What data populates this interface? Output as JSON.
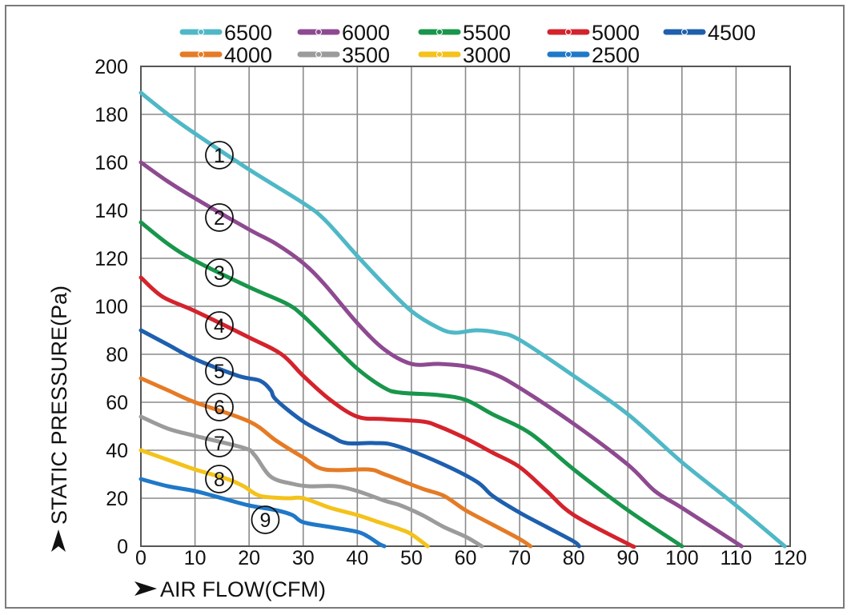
{
  "chart_data": {
    "type": "line",
    "title": "",
    "xlabel": "AIR FLOW(CFM)",
    "ylabel": "STATIC PRESSURE(Pa)",
    "xlim": [
      0,
      120
    ],
    "ylim": [
      0,
      200
    ],
    "x_ticks": [
      "0",
      "10",
      "20",
      "30",
      "40",
      "50",
      "60",
      "70",
      "80",
      "90",
      "100",
      "110",
      "120"
    ],
    "y_ticks": [
      "0",
      "20",
      "40",
      "60",
      "80",
      "100",
      "120",
      "140",
      "160",
      "180",
      "200"
    ],
    "grid": true,
    "legend_position": "top",
    "series": [
      {
        "name": "6500",
        "marker": "①",
        "color": "#4fb8c6",
        "label_x": 14.5,
        "label_y": 163,
        "points": [
          [
            0,
            189
          ],
          [
            5,
            180
          ],
          [
            10,
            172
          ],
          [
            20,
            157
          ],
          [
            30,
            143
          ],
          [
            34,
            136
          ],
          [
            40,
            121
          ],
          [
            45,
            109
          ],
          [
            50,
            98
          ],
          [
            55,
            91
          ],
          [
            58,
            89
          ],
          [
            62,
            90
          ],
          [
            66,
            89
          ],
          [
            70,
            86
          ],
          [
            80,
            71
          ],
          [
            90,
            55
          ],
          [
            100,
            35
          ],
          [
            110,
            17
          ],
          [
            119,
            0
          ]
        ]
      },
      {
        "name": "6000",
        "marker": "②",
        "color": "#8e4a91",
        "label_x": 14.5,
        "label_y": 137,
        "points": [
          [
            0,
            160
          ],
          [
            5,
            152
          ],
          [
            10,
            145
          ],
          [
            20,
            132
          ],
          [
            25,
            126
          ],
          [
            30,
            118
          ],
          [
            34,
            109
          ],
          [
            40,
            93
          ],
          [
            45,
            82
          ],
          [
            50,
            76
          ],
          [
            55,
            76
          ],
          [
            60,
            75
          ],
          [
            65,
            72
          ],
          [
            70,
            66
          ],
          [
            80,
            51
          ],
          [
            90,
            34
          ],
          [
            95,
            23
          ],
          [
            100,
            16
          ],
          [
            111,
            0
          ]
        ]
      },
      {
        "name": "5500",
        "marker": "③",
        "color": "#18964b",
        "label_x": 14.5,
        "label_y": 114,
        "points": [
          [
            0,
            135
          ],
          [
            5,
            126
          ],
          [
            10,
            119
          ],
          [
            20,
            108
          ],
          [
            27,
            101
          ],
          [
            30,
            96
          ],
          [
            35,
            85
          ],
          [
            40,
            74
          ],
          [
            45,
            66
          ],
          [
            48,
            64
          ],
          [
            55,
            63
          ],
          [
            60,
            61
          ],
          [
            65,
            55
          ],
          [
            72,
            47
          ],
          [
            80,
            32
          ],
          [
            90,
            15
          ],
          [
            100,
            0
          ]
        ]
      },
      {
        "name": "5000",
        "marker": "④",
        "color": "#d4232c",
        "label_x": 14.5,
        "label_y": 92,
        "points": [
          [
            0,
            112
          ],
          [
            4,
            104
          ],
          [
            10,
            98
          ],
          [
            20,
            87
          ],
          [
            26,
            80
          ],
          [
            30,
            71
          ],
          [
            35,
            61
          ],
          [
            40,
            54
          ],
          [
            45,
            53
          ],
          [
            52,
            52
          ],
          [
            55,
            50
          ],
          [
            60,
            45
          ],
          [
            65,
            39
          ],
          [
            70,
            33
          ],
          [
            75,
            23
          ],
          [
            80,
            13
          ],
          [
            90,
            1
          ],
          [
            91,
            0
          ]
        ]
      },
      {
        "name": "4500",
        "marker": "⑤",
        "color": "#1e5fae",
        "label_x": 14.5,
        "label_y": 73,
        "points": [
          [
            0,
            90
          ],
          [
            5,
            84
          ],
          [
            10,
            78
          ],
          [
            18,
            71
          ],
          [
            22,
            69
          ],
          [
            24,
            65
          ],
          [
            25,
            61
          ],
          [
            30,
            52
          ],
          [
            35,
            46
          ],
          [
            38,
            43
          ],
          [
            43,
            43
          ],
          [
            47,
            42
          ],
          [
            55,
            35
          ],
          [
            62,
            27
          ],
          [
            65,
            21
          ],
          [
            70,
            14
          ],
          [
            75,
            8
          ],
          [
            80,
            2
          ],
          [
            81,
            0
          ]
        ]
      },
      {
        "name": "4000",
        "marker": "⑥",
        "color": "#e57b25",
        "label_x": 14.5,
        "label_y": 58,
        "points": [
          [
            0,
            70
          ],
          [
            5,
            65
          ],
          [
            10,
            60
          ],
          [
            20,
            52
          ],
          [
            25,
            44
          ],
          [
            30,
            37
          ],
          [
            34,
            32
          ],
          [
            42,
            32
          ],
          [
            45,
            30
          ],
          [
            52,
            24
          ],
          [
            56,
            21
          ],
          [
            60,
            15
          ],
          [
            65,
            9
          ],
          [
            70,
            3
          ],
          [
            72,
            0
          ]
        ]
      },
      {
        "name": "3500",
        "marker": "⑦",
        "color": "#9b9b9b",
        "label_x": 14.5,
        "label_y": 43,
        "points": [
          [
            0,
            54
          ],
          [
            5,
            49
          ],
          [
            10,
            46
          ],
          [
            19,
            41
          ],
          [
            21,
            38
          ],
          [
            24,
            29
          ],
          [
            28,
            26
          ],
          [
            31,
            25
          ],
          [
            36,
            25
          ],
          [
            40,
            23
          ],
          [
            45,
            19
          ],
          [
            48,
            17
          ],
          [
            52,
            13
          ],
          [
            56,
            8
          ],
          [
            60,
            4
          ],
          [
            63,
            0
          ]
        ]
      },
      {
        "name": "3000",
        "marker": "⑧",
        "color": "#f4c21b",
        "label_x": 14.5,
        "label_y": 28,
        "points": [
          [
            0,
            40
          ],
          [
            5,
            36
          ],
          [
            10,
            32
          ],
          [
            16,
            28
          ],
          [
            19,
            25
          ],
          [
            22,
            21
          ],
          [
            27,
            20
          ],
          [
            30,
            20
          ],
          [
            35,
            16
          ],
          [
            40,
            13
          ],
          [
            44,
            10
          ],
          [
            48,
            7
          ],
          [
            50,
            5
          ],
          [
            53,
            0
          ]
        ]
      },
      {
        "name": "2500",
        "marker": "⑨",
        "color": "#1f78c8",
        "label_x": 23,
        "label_y": 11,
        "points": [
          [
            0,
            28
          ],
          [
            5,
            25
          ],
          [
            10,
            23
          ],
          [
            15,
            20
          ],
          [
            20,
            17
          ],
          [
            25,
            15
          ],
          [
            28,
            13
          ],
          [
            30,
            10
          ],
          [
            35,
            8
          ],
          [
            40,
            6
          ],
          [
            42,
            4
          ],
          [
            44,
            1
          ],
          [
            45,
            0
          ]
        ]
      }
    ]
  }
}
